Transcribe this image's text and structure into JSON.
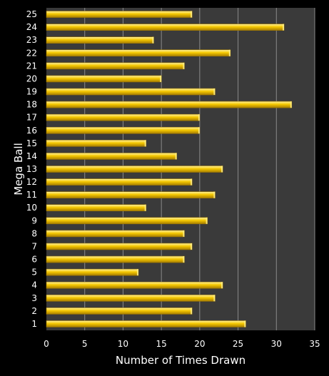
{
  "chart_data": {
    "type": "bar",
    "orientation": "horizontal",
    "title": "",
    "xlabel": "Number of Times Drawn",
    "ylabel": "Mega Ball",
    "xlim": [
      0,
      35
    ],
    "xticks": [
      0,
      5,
      10,
      15,
      20,
      25,
      30,
      35
    ],
    "grid": true,
    "categories": [
      "1",
      "2",
      "3",
      "4",
      "5",
      "6",
      "7",
      "8",
      "9",
      "10",
      "11",
      "12",
      "13",
      "14",
      "15",
      "16",
      "17",
      "18",
      "19",
      "20",
      "21",
      "22",
      "23",
      "24",
      "25"
    ],
    "values": [
      26,
      19,
      22,
      23,
      12,
      18,
      19,
      18,
      21,
      13,
      22,
      19,
      23,
      17,
      13,
      20,
      20,
      32,
      22,
      15,
      18,
      24,
      14,
      31,
      19
    ],
    "colors": {
      "background": "#000000",
      "plot_area": "#3a3a3a",
      "gridline": "#8a8a8a",
      "bar_fill": "#f2c200",
      "bar_highlight": "#fff08a",
      "bar_shadow": "#a07800",
      "text": "#ffffff"
    }
  }
}
